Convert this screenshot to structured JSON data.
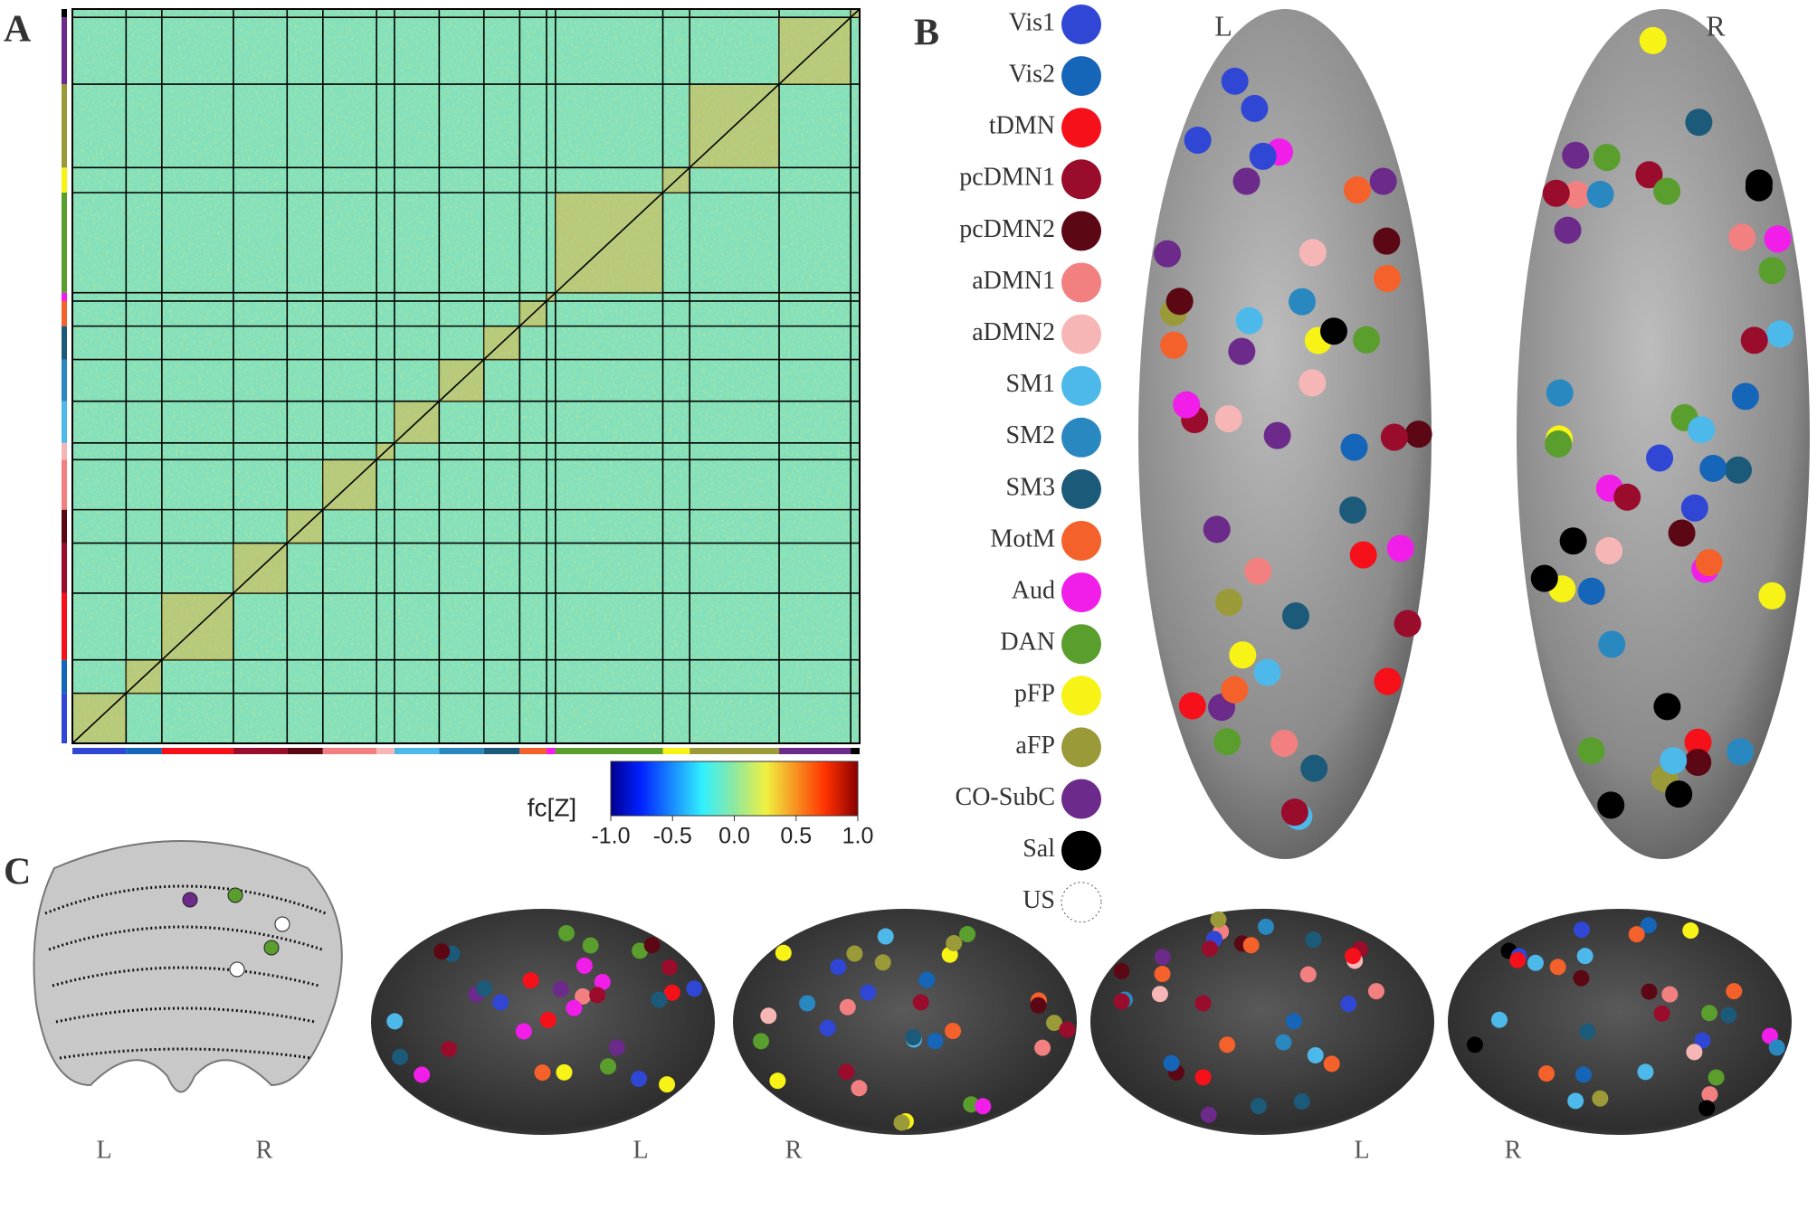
{
  "panels": {
    "a": "A",
    "b": "B",
    "c": "C"
  },
  "colorbar": {
    "label": "fc[Z]",
    "lim": [
      -1,
      1
    ],
    "ticks": [
      {
        "value": -1,
        "label": "-1.0"
      },
      {
        "value": -0.5,
        "label": "-0.5"
      },
      {
        "value": 0,
        "label": "0.0"
      },
      {
        "value": 0.5,
        "label": "0.5"
      },
      {
        "value": 1,
        "label": "1.0"
      }
    ]
  },
  "networks": [
    {
      "name": "Vis1",
      "color": "#3047d6"
    },
    {
      "name": "Vis2",
      "color": "#1565b8"
    },
    {
      "name": "tDMN",
      "color": "#f5101a"
    },
    {
      "name": "pcDMN1",
      "color": "#9a0c2c"
    },
    {
      "name": "pcDMN2",
      "color": "#5c0714"
    },
    {
      "name": "aDMN1",
      "color": "#f38080"
    },
    {
      "name": "aDMN2",
      "color": "#f7b6b6"
    },
    {
      "name": "SM1",
      "color": "#4db8ea"
    },
    {
      "name": "SM2",
      "color": "#2a88c0"
    },
    {
      "name": "SM3",
      "color": "#1c5a7a"
    },
    {
      "name": "MotM",
      "color": "#f5612a"
    },
    {
      "name": "Aud",
      "color": "#f01ee8"
    },
    {
      "name": "DAN",
      "color": "#5a9e2e"
    },
    {
      "name": "pFP",
      "color": "#f8f316"
    },
    {
      "name": "aFP",
      "color": "#9a9a38"
    },
    {
      "name": "CO-SubC",
      "color": "#6c2a8a"
    },
    {
      "name": "Sal",
      "color": "#000000"
    },
    {
      "name": "US",
      "color": "none"
    }
  ],
  "hemisphere_labels": {
    "b_left": "L",
    "b_right": "R",
    "cerebellum_left": "L",
    "cerebellum_right": "R",
    "lateral_left": "L",
    "lateral_right": "R",
    "medial_left": "L",
    "medial_right": "R"
  }
}
